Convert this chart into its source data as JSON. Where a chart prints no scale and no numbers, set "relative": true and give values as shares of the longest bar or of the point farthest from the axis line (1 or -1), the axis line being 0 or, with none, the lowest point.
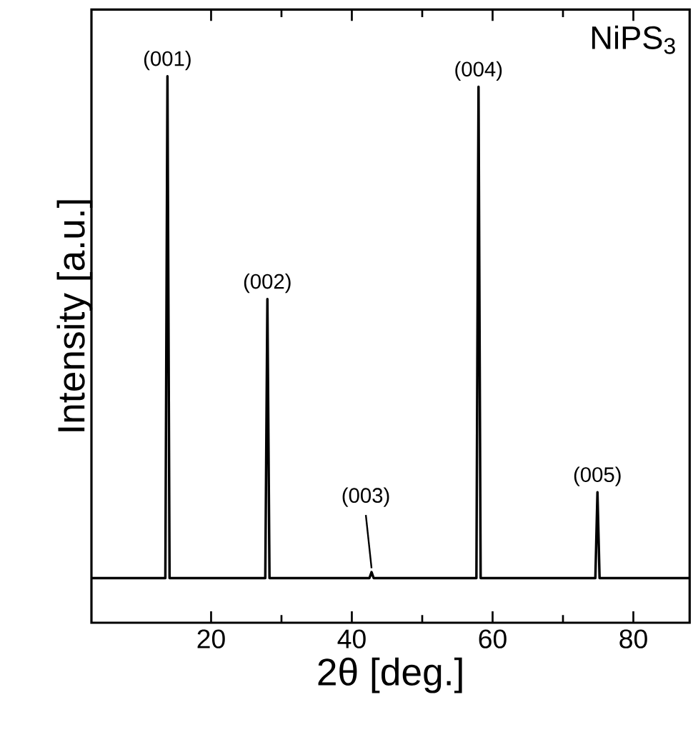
{
  "chart_data": {
    "type": "line",
    "relative": true,
    "xlabel": "2θ [deg.]",
    "ylabel": "Intensity [a.u.]",
    "xlim": [
      3,
      88
    ],
    "xticks": [
      20,
      40,
      60,
      80
    ],
    "series": [
      {
        "color": "#000000",
        "x": [
          3,
          13.5,
          13.8,
          14.1,
          27.7,
          28.0,
          28.3,
          42.5,
          42.8,
          43.1,
          57.7,
          58.0,
          58.3,
          74.6,
          74.9,
          75.2,
          88
        ],
        "values": [
          0,
          0,
          1,
          0,
          0,
          0.556,
          0,
          0,
          0.012,
          0,
          0,
          0.979,
          0,
          0,
          0.171,
          0,
          0
        ]
      }
    ],
    "annotations": [
      {
        "text": "(001)",
        "x": 13.8,
        "y": 1
      },
      {
        "text": "(002)",
        "x": 28.0,
        "y": 0.556
      },
      {
        "text": "(003)",
        "x": 42.8,
        "y": 0.012
      },
      {
        "text": "(004)",
        "x": 58.0,
        "y": 0.979
      },
      {
        "text": "(005)",
        "x": 74.9,
        "y": 0.171
      },
      "NiPS$_{3}$"
    ],
    "grid": false,
    "marker": "none",
    "line_style": "solid"
  }
}
